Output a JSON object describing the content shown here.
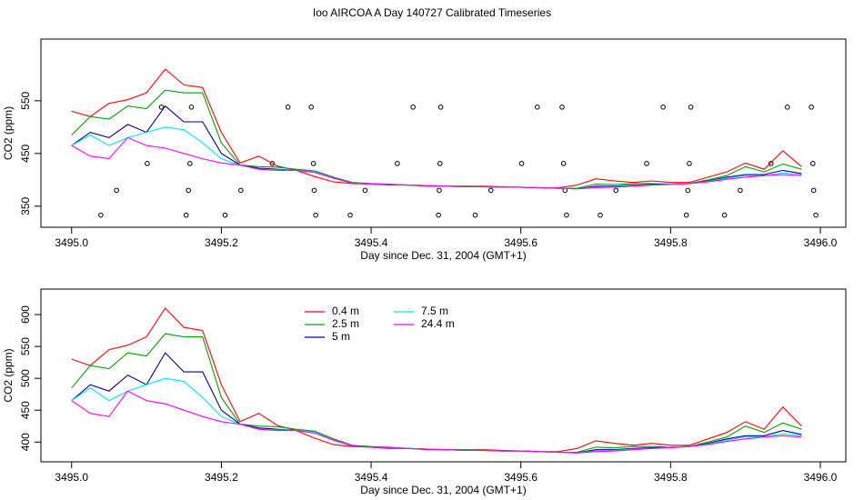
{
  "title": "Ioo AIRCOA A  Day 140727  Calibrated Timeseries",
  "chart_data": [
    {
      "type": "line",
      "ylabel": "CO2 (ppm)",
      "xlabel": "Day since Dec. 31, 2004 (GMT+1)",
      "xlim": [
        3494.959,
        3496.034
      ],
      "ylim": [
        310,
        667
      ],
      "xticks": [
        {
          "value": 3495.0,
          "label": "3495.0"
        },
        {
          "value": 3495.2,
          "label": "3495.2"
        },
        {
          "value": 3495.4,
          "label": "3495.4"
        },
        {
          "value": 3495.6,
          "label": "3495.6"
        },
        {
          "value": 3495.8,
          "label": "3495.8"
        },
        {
          "value": 3496.0,
          "label": "3496.0"
        }
      ],
      "yticks": [
        350,
        450,
        550
      ],
      "x": [
        3495.0,
        3495.025,
        3495.05,
        3495.075,
        3495.1,
        3495.125,
        3495.15,
        3495.175,
        3495.2,
        3495.225,
        3495.25,
        3495.275,
        3495.3,
        3495.325,
        3495.35,
        3495.375,
        3495.4,
        3495.425,
        3495.45,
        3495.475,
        3495.5,
        3495.525,
        3495.55,
        3495.575,
        3495.6,
        3495.625,
        3495.65,
        3495.675,
        3495.7,
        3495.725,
        3495.75,
        3495.775,
        3495.8,
        3495.825,
        3495.85,
        3495.875,
        3495.9,
        3495.925,
        3495.95,
        3495.975
      ],
      "series": [
        {
          "color": "#ff0000",
          "values": [
            530,
            520,
            545,
            552,
            565,
            610,
            580,
            575,
            490,
            432,
            445,
            426,
            418,
            406,
            396,
            393,
            392,
            390,
            390,
            388,
            388,
            388,
            388,
            387,
            386,
            385,
            385,
            390,
            402,
            398,
            395,
            398,
            395,
            395,
            405,
            415,
            432,
            420,
            455,
            425
          ]
        },
        {
          "color": "#00a000",
          "values": [
            485,
            520,
            515,
            540,
            535,
            570,
            565,
            565,
            470,
            428,
            425,
            424,
            420,
            417,
            405,
            395,
            393,
            392,
            390,
            389,
            388,
            388,
            387,
            386,
            386,
            385,
            384,
            384,
            392,
            391,
            393,
            393,
            392,
            393,
            400,
            408,
            425,
            415,
            430,
            420
          ]
        },
        {
          "color": "#00008b",
          "values": [
            465,
            490,
            480,
            505,
            490,
            540,
            510,
            510,
            450,
            428,
            422,
            420,
            418,
            415,
            403,
            394,
            392,
            391,
            390,
            389,
            388,
            387,
            387,
            386,
            386,
            385,
            384,
            383,
            388,
            388,
            390,
            391,
            392,
            393,
            398,
            405,
            410,
            410,
            418,
            412
          ]
        },
        {
          "color": "#00e5ee",
          "values": [
            465,
            485,
            465,
            480,
            490,
            500,
            495,
            470,
            440,
            428,
            420,
            419,
            418,
            415,
            403,
            394,
            392,
            391,
            390,
            389,
            388,
            387,
            387,
            386,
            386,
            385,
            384,
            383,
            386,
            387,
            389,
            390,
            392,
            393,
            397,
            403,
            408,
            408,
            413,
            410
          ]
        },
        {
          "color": "#ff00ff",
          "values": [
            465,
            445,
            440,
            480,
            465,
            460,
            450,
            440,
            432,
            428,
            420,
            418,
            418,
            414,
            403,
            394,
            392,
            391,
            390,
            389,
            388,
            387,
            387,
            386,
            386,
            385,
            384,
            383,
            385,
            386,
            388,
            390,
            391,
            393,
            396,
            401,
            405,
            408,
            410,
            408
          ]
        }
      ],
      "points": {
        "color": "#000000",
        "x": [
          3495.039,
          3495.06,
          3495.101,
          3495.12,
          3495.153,
          3495.156,
          3495.158,
          3495.16,
          3495.205,
          3495.226,
          3495.268,
          3495.289,
          3495.32,
          3495.323,
          3495.324,
          3495.326,
          3495.372,
          3495.392,
          3495.435,
          3495.456,
          3495.49,
          3495.491,
          3495.492,
          3495.493,
          3495.539,
          3495.56,
          3495.601,
          3495.622,
          3495.655,
          3495.657,
          3495.659,
          3495.661,
          3495.706,
          3495.727,
          3495.768,
          3495.79,
          3495.821,
          3495.823,
          3495.825,
          3495.827,
          3495.872,
          3495.893,
          3495.934,
          3495.956,
          3495.988,
          3495.99,
          3495.991,
          3495.994
        ],
        "values": [
          333,
          380,
          431,
          538,
          333,
          380,
          431,
          538,
          333,
          380,
          431,
          538,
          538,
          431,
          380,
          333,
          333,
          380,
          431,
          538,
          333,
          380,
          431,
          538,
          333,
          380,
          431,
          538,
          538,
          431,
          380,
          333,
          333,
          380,
          431,
          538,
          333,
          380,
          431,
          538,
          333,
          380,
          431,
          538,
          538,
          431,
          380,
          333
        ]
      }
    },
    {
      "type": "line",
      "ylabel": "CO2 (ppm)",
      "xlabel": "Day since Dec. 31, 2004 (GMT+1)",
      "xlim": [
        3494.959,
        3496.034
      ],
      "ylim": [
        369,
        640
      ],
      "xticks": [
        {
          "value": 3495.0,
          "label": "3495.0"
        },
        {
          "value": 3495.2,
          "label": "3495.2"
        },
        {
          "value": 3495.4,
          "label": "3495.4"
        },
        {
          "value": 3495.6,
          "label": "3495.6"
        },
        {
          "value": 3495.8,
          "label": "3495.8"
        },
        {
          "value": 3496.0,
          "label": "3496.0"
        }
      ],
      "yticks": [
        400,
        450,
        500,
        550,
        600
      ],
      "x": [
        3495.0,
        3495.025,
        3495.05,
        3495.075,
        3495.1,
        3495.125,
        3495.15,
        3495.175,
        3495.2,
        3495.225,
        3495.25,
        3495.275,
        3495.3,
        3495.325,
        3495.35,
        3495.375,
        3495.4,
        3495.425,
        3495.45,
        3495.475,
        3495.5,
        3495.525,
        3495.55,
        3495.575,
        3495.6,
        3495.625,
        3495.65,
        3495.675,
        3495.7,
        3495.725,
        3495.75,
        3495.775,
        3495.8,
        3495.825,
        3495.85,
        3495.875,
        3495.9,
        3495.925,
        3495.95,
        3495.975
      ],
      "series": [
        {
          "name": "0.4 m",
          "color": "#ff0000",
          "values": [
            530,
            520,
            545,
            552,
            565,
            610,
            580,
            575,
            490,
            432,
            445,
            426,
            418,
            406,
            396,
            393,
            392,
            390,
            390,
            388,
            388,
            388,
            388,
            387,
            386,
            385,
            385,
            390,
            402,
            398,
            395,
            398,
            395,
            395,
            405,
            415,
            432,
            420,
            455,
            425
          ]
        },
        {
          "name": "2.5 m",
          "color": "#00a000",
          "values": [
            485,
            520,
            515,
            540,
            535,
            570,
            565,
            565,
            470,
            428,
            425,
            424,
            420,
            417,
            405,
            395,
            393,
            392,
            390,
            389,
            388,
            388,
            387,
            386,
            386,
            385,
            384,
            384,
            392,
            391,
            393,
            393,
            392,
            393,
            400,
            408,
            425,
            415,
            430,
            420
          ]
        },
        {
          "name": "5 m",
          "color": "#00008b",
          "values": [
            465,
            490,
            480,
            505,
            490,
            540,
            510,
            510,
            450,
            428,
            422,
            420,
            418,
            415,
            403,
            394,
            392,
            391,
            390,
            389,
            388,
            387,
            387,
            386,
            386,
            385,
            384,
            383,
            388,
            388,
            390,
            391,
            392,
            393,
            398,
            405,
            410,
            410,
            418,
            412
          ]
        },
        {
          "name": "7.5 m",
          "color": "#00e5ee",
          "values": [
            465,
            485,
            465,
            480,
            490,
            500,
            495,
            470,
            440,
            428,
            420,
            419,
            418,
            415,
            403,
            394,
            392,
            391,
            390,
            389,
            388,
            387,
            387,
            386,
            386,
            385,
            384,
            383,
            386,
            387,
            389,
            390,
            392,
            393,
            397,
            403,
            408,
            408,
            413,
            410
          ]
        },
        {
          "name": "24.4 m",
          "color": "#ff00ff",
          "values": [
            465,
            445,
            440,
            480,
            465,
            460,
            450,
            440,
            432,
            428,
            420,
            418,
            418,
            414,
            403,
            394,
            392,
            391,
            390,
            389,
            388,
            387,
            387,
            386,
            386,
            385,
            384,
            383,
            385,
            386,
            388,
            390,
            391,
            393,
            396,
            401,
            405,
            408,
            410,
            408
          ]
        }
      ]
    }
  ]
}
